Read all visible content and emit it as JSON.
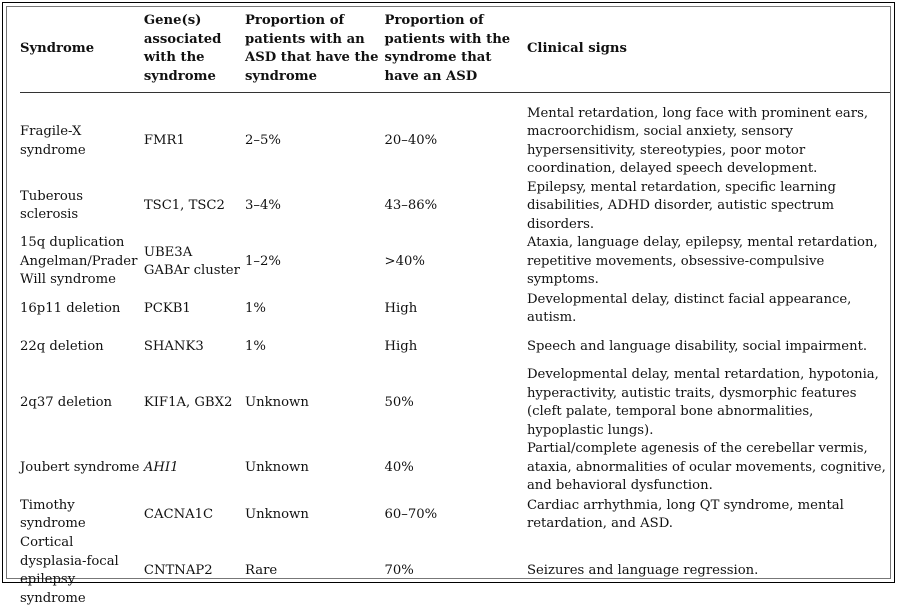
{
  "table": {
    "headers": [
      "Syndrome",
      "Gene(s) associated with the syndrome",
      "Proportion of patients with an ASD that have the syndrome",
      "Proportion of patients with the syndrome that have an ASD",
      "Clinical signs"
    ],
    "rows": [
      {
        "syndrome": "Fragile-X syndrome",
        "genes": "FMR1",
        "asd_with_syndrome": "2–5%",
        "syndrome_with_asd": "20–40%",
        "signs": "Mental retardation, long face with prominent ears, macroorchidism, social anxiety, sensory hypersensitivity, stereotypies, poor motor coordination, delayed speech development."
      },
      {
        "syndrome": "Tuberous sclerosis",
        "genes": "TSC1, TSC2",
        "asd_with_syndrome": "3–4%",
        "syndrome_with_asd": "43–86%",
        "signs": "Epilepsy, mental retardation, specific learning disabilities, ADHD disorder, autistic spectrum disorders."
      },
      {
        "syndrome": "15q duplication Angelman/Prader Will syndrome",
        "genes": "UBE3A GABAr cluster",
        "asd_with_syndrome": "1–2%",
        "syndrome_with_asd": ">40%",
        "signs": "Ataxia, language delay, epilepsy, mental retardation, repetitive movements, obsessive-compulsive symptoms."
      },
      {
        "syndrome": "16p11 deletion",
        "genes": "PCKB1",
        "asd_with_syndrome": "1%",
        "syndrome_with_asd": "High",
        "signs": "Developmental delay, distinct facial appearance, autism."
      },
      {
        "syndrome": "22q deletion",
        "genes": "SHANK3",
        "asd_with_syndrome": "1%",
        "syndrome_with_asd": "High",
        "signs": "Speech and language disability, social impairment."
      },
      {
        "syndrome": "2q37 deletion",
        "genes": "KIF1A, GBX2",
        "asd_with_syndrome": "Unknown",
        "syndrome_with_asd": "50%",
        "signs": "Developmental delay, mental retardation, hypotonia, hyperactivity, autistic traits, dysmorphic features (cleft palate, temporal bone abnormalities, hypoplastic lungs)."
      },
      {
        "syndrome": "Joubert syndrome",
        "genes": "AHI1",
        "asd_with_syndrome": "Unknown",
        "syndrome_with_asd": "40%",
        "signs": "Partial/complete agenesis of the cerebellar vermis, ataxia, abnormalities of ocular movements, cognitive, and behavioral dysfunction."
      },
      {
        "syndrome": "Timothy syndrome",
        "genes": "CACNA1C",
        "asd_with_syndrome": "Unknown",
        "syndrome_with_asd": "60–70%",
        "signs": "Cardiac arrhythmia, long QT syndrome, mental retardation, and ASD."
      },
      {
        "syndrome": "Cortical dysplasia-focal epilepsy syndrome",
        "genes": "CNTNAP2",
        "asd_with_syndrome": "Rare",
        "syndrome_with_asd": "70%",
        "signs": "Seizures and language regression."
      }
    ]
  }
}
